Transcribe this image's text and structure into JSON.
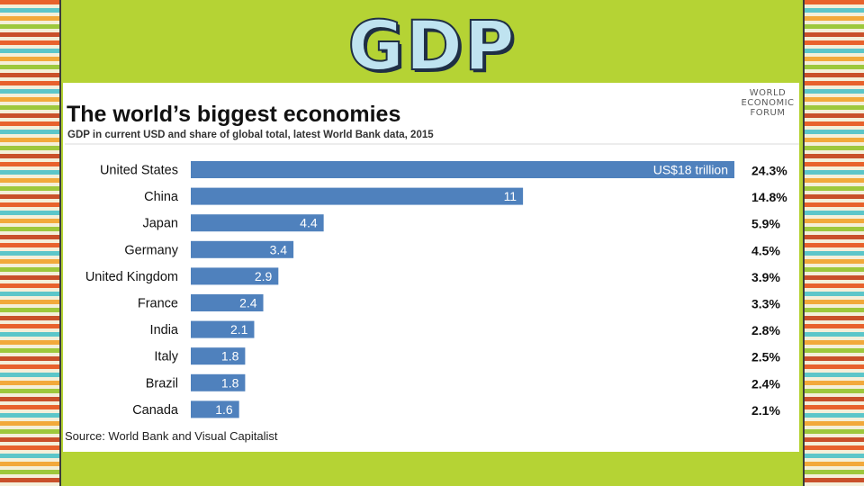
{
  "page": {
    "heading": "GDP"
  },
  "colors": {
    "background": "#b5d334",
    "bar": "#4f81bd",
    "bar_text": "#ffffff",
    "text": "#111111"
  },
  "logo": {
    "line1": "WORLD",
    "line2": "ECONOMIC",
    "line3": "FORUM"
  },
  "chart_data": {
    "type": "bar",
    "orientation": "horizontal",
    "title": "The world’s biggest economies",
    "subtitle": "GDP in current USD and share of global total, latest World Bank data, 2015",
    "source": "Source: World Bank and Visual Capitalist",
    "categories": [
      "United States",
      "China",
      "Japan",
      "Germany",
      "United Kingdom",
      "France",
      "India",
      "Italy",
      "Brazil",
      "Canada"
    ],
    "values": [
      18,
      11,
      4.4,
      3.4,
      2.9,
      2.4,
      2.1,
      1.8,
      1.8,
      1.6
    ],
    "value_labels": [
      "US$18 trillion",
      "11",
      "4.4",
      "3.4",
      "2.9",
      "2.4",
      "2.1",
      "1.8",
      "1.8",
      "1.6"
    ],
    "shares": [
      "24.3%",
      "14.8%",
      "5.9%",
      "4.5%",
      "3.9%",
      "3.3%",
      "2.8%",
      "2.5%",
      "2.4%",
      "2.1%"
    ],
    "xlim": [
      0,
      18
    ],
    "unit": "US$ trillion"
  }
}
